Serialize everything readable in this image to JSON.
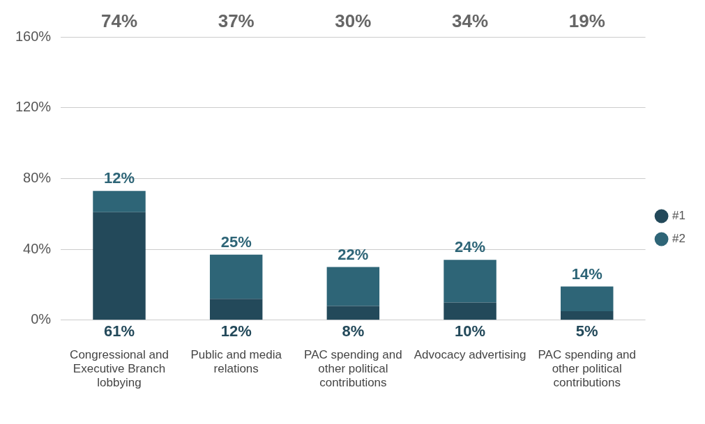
{
  "chart_data": {
    "type": "bar",
    "stacked": true,
    "categories": [
      "Congressional and Executive Branch lobbying",
      "Public and media relations",
      "PAC spending and other political contributions",
      "Advocacy advertising",
      "PAC spending and other political contributions"
    ],
    "series": [
      {
        "name": "#1",
        "color": "#23495a",
        "values": [
          61,
          12,
          8,
          10,
          5
        ],
        "value_labels": [
          "61%",
          "12%",
          "8%",
          "10%",
          "5%"
        ]
      },
      {
        "name": "#2",
        "color": "#2e6577",
        "values": [
          12,
          25,
          22,
          24,
          14
        ],
        "value_labels": [
          "12%",
          "25%",
          "22%",
          "24%",
          "14%"
        ]
      }
    ],
    "annotations": [
      "74%",
      "37%",
      "30%",
      "34%",
      "19%"
    ],
    "ylim": [
      0,
      160
    ],
    "yticks": [
      {
        "value": 0,
        "label": "0%"
      },
      {
        "value": 40,
        "label": "40%"
      },
      {
        "value": 80,
        "label": "80%"
      },
      {
        "value": 120,
        "label": "120%"
      },
      {
        "value": 160,
        "label": "160%"
      }
    ],
    "grid": "y",
    "legend": "right"
  }
}
